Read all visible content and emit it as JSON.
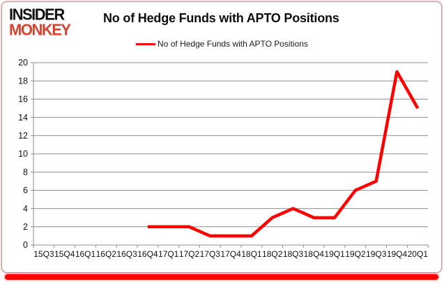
{
  "logo": {
    "line1": "INSIDER",
    "line2": "MONKEY"
  },
  "header": {
    "title": "No of Hedge Funds with APTO Positions"
  },
  "legend": {
    "label": "No of Hedge Funds with APTO Positions"
  },
  "colors": {
    "line": "#ff0000",
    "grid": "#8c8c8c",
    "axis": "#8c8c8c",
    "tick_text": "#111111",
    "logo_black": "#121212",
    "logo_red": "#d9432e",
    "frame_border": "#a6a6a6",
    "bottom_bar": "#ff0000"
  },
  "chart_data": {
    "type": "line",
    "title": "No of Hedge Funds with APTO Positions",
    "categories": [
      "15Q3",
      "15Q4",
      "16Q1",
      "16Q2",
      "16Q3",
      "16Q4",
      "17Q1",
      "17Q2",
      "17Q3",
      "17Q4",
      "18Q1",
      "18Q2",
      "18Q3",
      "18Q4",
      "19Q1",
      "19Q2",
      "19Q3",
      "19Q4",
      "20Q1"
    ],
    "series": [
      {
        "name": "No of Hedge Funds with APTO Positions",
        "color": "#ff0000",
        "values": [
          null,
          null,
          null,
          null,
          null,
          2,
          2,
          2,
          1,
          1,
          1,
          3,
          4,
          3,
          3,
          6,
          7,
          19,
          15
        ]
      }
    ],
    "ylim": [
      0,
      20
    ],
    "ytick_step": 2,
    "grid": true,
    "legend_position": "top-center"
  }
}
